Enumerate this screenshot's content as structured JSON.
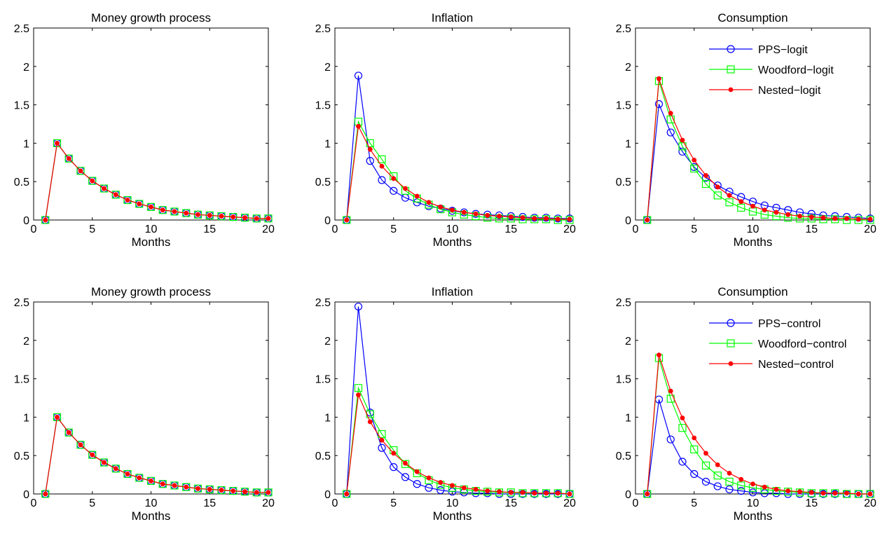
{
  "chart_data": [
    {
      "type": "line",
      "title": "Money growth process",
      "xlabel": "Months",
      "ylabel": "",
      "xlim": [
        0,
        20
      ],
      "ylim": [
        0,
        2.5
      ],
      "xticks": [
        0,
        5,
        10,
        15,
        20
      ],
      "yticks": [
        0,
        0.5,
        1,
        1.5,
        2,
        2.5
      ],
      "ytick_labels": [
        "0",
        "0.5",
        "1",
        "1.5",
        "2",
        "2.5"
      ],
      "x": [
        1,
        2,
        3,
        4,
        5,
        6,
        7,
        8,
        9,
        10,
        11,
        12,
        13,
        14,
        15,
        16,
        17,
        18,
        19,
        20
      ],
      "legend": null,
      "series": [
        {
          "name": "",
          "color": "#0000ff",
          "marker": "circle",
          "values": [
            0,
            1.0,
            0.8,
            0.64,
            0.51,
            0.41,
            0.33,
            0.26,
            0.21,
            0.17,
            0.13,
            0.11,
            0.09,
            0.07,
            0.06,
            0.05,
            0.04,
            0.03,
            0.02,
            0.02
          ]
        },
        {
          "name": "",
          "color": "#00ff00",
          "marker": "square",
          "values": [
            0,
            1.0,
            0.8,
            0.64,
            0.51,
            0.41,
            0.33,
            0.26,
            0.21,
            0.17,
            0.13,
            0.11,
            0.09,
            0.07,
            0.06,
            0.05,
            0.04,
            0.03,
            0.02,
            0.02
          ]
        },
        {
          "name": "",
          "color": "#ff0000",
          "marker": "dot",
          "values": [
            0,
            1.0,
            0.8,
            0.64,
            0.51,
            0.41,
            0.33,
            0.26,
            0.21,
            0.17,
            0.13,
            0.11,
            0.09,
            0.07,
            0.06,
            0.05,
            0.04,
            0.03,
            0.02,
            0.02
          ]
        }
      ]
    },
    {
      "type": "line",
      "title": "Inflation",
      "xlabel": "Months",
      "ylabel": "",
      "xlim": [
        0,
        20
      ],
      "ylim": [
        0,
        2.5
      ],
      "xticks": [
        0,
        5,
        10,
        15,
        20
      ],
      "yticks": [
        0,
        0.5,
        1,
        1.5,
        2,
        2.5
      ],
      "ytick_labels": [
        "0",
        "0.5",
        "1",
        "1.5",
        "2",
        "2.5"
      ],
      "x": [
        1,
        2,
        3,
        4,
        5,
        6,
        7,
        8,
        9,
        10,
        11,
        12,
        13,
        14,
        15,
        16,
        17,
        18,
        19,
        20
      ],
      "legend": null,
      "series": [
        {
          "name": "",
          "color": "#0000ff",
          "marker": "circle",
          "values": [
            0,
            1.88,
            0.77,
            0.52,
            0.38,
            0.29,
            0.23,
            0.18,
            0.15,
            0.12,
            0.1,
            0.08,
            0.07,
            0.06,
            0.05,
            0.04,
            0.03,
            0.03,
            0.02,
            0.02
          ]
        },
        {
          "name": "",
          "color": "#00ff00",
          "marker": "square",
          "values": [
            0,
            1.28,
            1.0,
            0.79,
            0.57,
            0.38,
            0.28,
            0.2,
            0.14,
            0.1,
            0.07,
            0.05,
            0.03,
            0.02,
            0.02,
            0.01,
            0.01,
            0.01,
            0.0,
            0.0
          ]
        },
        {
          "name": "",
          "color": "#ff0000",
          "marker": "dot",
          "values": [
            0,
            1.22,
            0.92,
            0.7,
            0.54,
            0.41,
            0.31,
            0.23,
            0.17,
            0.13,
            0.1,
            0.08,
            0.06,
            0.05,
            0.04,
            0.03,
            0.02,
            0.02,
            0.01,
            0.01
          ]
        }
      ]
    },
    {
      "type": "line",
      "title": "Consumption",
      "xlabel": "Months",
      "ylabel": "",
      "xlim": [
        0,
        20
      ],
      "ylim": [
        0,
        2.5
      ],
      "xticks": [
        0,
        5,
        10,
        15,
        20
      ],
      "yticks": [
        0,
        0.5,
        1,
        1.5,
        2,
        2.5
      ],
      "ytick_labels": [
        "0",
        "0.5",
        "1",
        "1.5",
        "2",
        "2.5"
      ],
      "x": [
        1,
        2,
        3,
        4,
        5,
        6,
        7,
        8,
        9,
        10,
        11,
        12,
        13,
        14,
        15,
        16,
        17,
        18,
        19,
        20
      ],
      "legend": "top-right",
      "series": [
        {
          "name": "PPS−logit",
          "color": "#0000ff",
          "marker": "circle",
          "values": [
            0,
            1.51,
            1.14,
            0.89,
            0.69,
            0.55,
            0.45,
            0.37,
            0.3,
            0.24,
            0.19,
            0.16,
            0.13,
            0.1,
            0.08,
            0.06,
            0.05,
            0.04,
            0.03,
            0.02
          ]
        },
        {
          "name": "Woodford−logit",
          "color": "#00ff00",
          "marker": "square",
          "values": [
            0,
            1.81,
            1.31,
            0.96,
            0.67,
            0.47,
            0.32,
            0.23,
            0.16,
            0.11,
            0.07,
            0.05,
            0.03,
            0.02,
            0.02,
            0.01,
            0.01,
            0.0,
            0.0,
            0.0
          ]
        },
        {
          "name": "Nested−logit",
          "color": "#ff0000",
          "marker": "dot",
          "values": [
            0,
            1.84,
            1.39,
            1.04,
            0.78,
            0.58,
            0.43,
            0.32,
            0.24,
            0.18,
            0.13,
            0.1,
            0.07,
            0.05,
            0.04,
            0.03,
            0.02,
            0.02,
            0.01,
            0.01
          ]
        }
      ]
    },
    {
      "type": "line",
      "title": "Money growth process",
      "xlabel": "Months",
      "ylabel": "",
      "xlim": [
        0,
        20
      ],
      "ylim": [
        0,
        2.5
      ],
      "xticks": [
        0,
        5,
        10,
        15,
        20
      ],
      "yticks": [
        0,
        0.5,
        1,
        1.5,
        2,
        2.5
      ],
      "ytick_labels": [
        "0",
        "0.5",
        "1",
        "1.5",
        "2",
        "2.5"
      ],
      "x": [
        1,
        2,
        3,
        4,
        5,
        6,
        7,
        8,
        9,
        10,
        11,
        12,
        13,
        14,
        15,
        16,
        17,
        18,
        19,
        20
      ],
      "legend": null,
      "series": [
        {
          "name": "",
          "color": "#0000ff",
          "marker": "circle",
          "values": [
            0,
            1.0,
            0.8,
            0.64,
            0.51,
            0.41,
            0.33,
            0.26,
            0.21,
            0.17,
            0.13,
            0.11,
            0.09,
            0.07,
            0.06,
            0.05,
            0.04,
            0.03,
            0.02,
            0.02
          ]
        },
        {
          "name": "",
          "color": "#00ff00",
          "marker": "square",
          "values": [
            0,
            1.0,
            0.8,
            0.64,
            0.51,
            0.41,
            0.33,
            0.26,
            0.21,
            0.17,
            0.13,
            0.11,
            0.09,
            0.07,
            0.06,
            0.05,
            0.04,
            0.03,
            0.02,
            0.02
          ]
        },
        {
          "name": "",
          "color": "#ff0000",
          "marker": "dot",
          "values": [
            0,
            1.0,
            0.8,
            0.64,
            0.51,
            0.41,
            0.33,
            0.26,
            0.21,
            0.17,
            0.13,
            0.11,
            0.09,
            0.07,
            0.06,
            0.05,
            0.04,
            0.03,
            0.02,
            0.02
          ]
        }
      ]
    },
    {
      "type": "line",
      "title": "Inflation",
      "xlabel": "Months",
      "ylabel": "",
      "xlim": [
        0,
        20
      ],
      "ylim": [
        0,
        2.5
      ],
      "xticks": [
        0,
        5,
        10,
        15,
        20
      ],
      "yticks": [
        0,
        0.5,
        1,
        1.5,
        2,
        2.5
      ],
      "ytick_labels": [
        "0",
        "0.5",
        "1",
        "1.5",
        "2",
        "2.5"
      ],
      "x": [
        1,
        2,
        3,
        4,
        5,
        6,
        7,
        8,
        9,
        10,
        11,
        12,
        13,
        14,
        15,
        16,
        17,
        18,
        19,
        20
      ],
      "legend": null,
      "series": [
        {
          "name": "",
          "color": "#0000ff",
          "marker": "circle",
          "values": [
            0,
            2.44,
            1.06,
            0.6,
            0.35,
            0.22,
            0.13,
            0.08,
            0.05,
            0.03,
            0.02,
            0.01,
            0.01,
            0.0,
            0.0,
            0.0,
            0.0,
            0.0,
            0.0,
            0.0
          ]
        },
        {
          "name": "",
          "color": "#00ff00",
          "marker": "square",
          "values": [
            0,
            1.38,
            1.04,
            0.78,
            0.57,
            0.39,
            0.27,
            0.18,
            0.12,
            0.08,
            0.06,
            0.04,
            0.03,
            0.02,
            0.02,
            0.01,
            0.01,
            0.01,
            0.01,
            0.0
          ]
        },
        {
          "name": "",
          "color": "#ff0000",
          "marker": "dot",
          "values": [
            0,
            1.29,
            0.94,
            0.7,
            0.53,
            0.4,
            0.29,
            0.21,
            0.15,
            0.11,
            0.08,
            0.06,
            0.04,
            0.03,
            0.02,
            0.02,
            0.01,
            0.01,
            0.01,
            0.0
          ]
        }
      ]
    },
    {
      "type": "line",
      "title": "Consumption",
      "xlabel": "Months",
      "ylabel": "",
      "xlim": [
        0,
        20
      ],
      "ylim": [
        0,
        2.5
      ],
      "xticks": [
        0,
        5,
        10,
        15,
        20
      ],
      "yticks": [
        0,
        0.5,
        1,
        1.5,
        2,
        2.5
      ],
      "ytick_labels": [
        "0",
        "0.5",
        "1",
        "1.5",
        "2",
        "2.5"
      ],
      "x": [
        1,
        2,
        3,
        4,
        5,
        6,
        7,
        8,
        9,
        10,
        11,
        12,
        13,
        14,
        15,
        16,
        17,
        18,
        19,
        20
      ],
      "legend": "top-right",
      "series": [
        {
          "name": "PPS−control",
          "color": "#0000ff",
          "marker": "circle",
          "values": [
            0,
            1.23,
            0.71,
            0.42,
            0.26,
            0.16,
            0.1,
            0.06,
            0.04,
            0.02,
            0.01,
            0.01,
            0.0,
            0.0,
            0.0,
            0.0,
            0.0,
            0.0,
            0.0,
            0.0
          ]
        },
        {
          "name": "Woodford−control",
          "color": "#00ff00",
          "marker": "square",
          "values": [
            0,
            1.77,
            1.24,
            0.86,
            0.58,
            0.37,
            0.24,
            0.16,
            0.11,
            0.08,
            0.06,
            0.04,
            0.03,
            0.02,
            0.01,
            0.01,
            0.01,
            0.0,
            0.0,
            0.0
          ]
        },
        {
          "name": "Nested−control",
          "color": "#ff0000",
          "marker": "dot",
          "values": [
            0,
            1.81,
            1.34,
            0.99,
            0.73,
            0.53,
            0.38,
            0.27,
            0.19,
            0.13,
            0.09,
            0.06,
            0.04,
            0.03,
            0.02,
            0.01,
            0.01,
            0.01,
            0.0,
            0.0
          ]
        }
      ]
    }
  ]
}
